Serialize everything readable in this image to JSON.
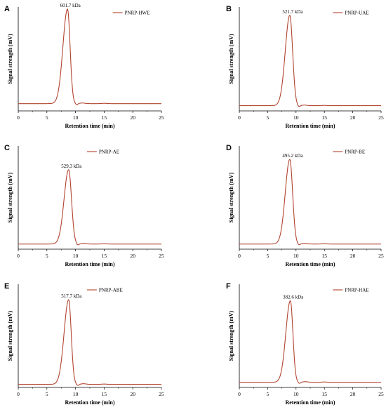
{
  "figure": {
    "background": "#ffffff",
    "line_color": "#b2432f"
  },
  "chart_data": [
    {
      "type": "line",
      "letter": "A",
      "legend": "PNRP-HWE",
      "xlabel": "Retention time (min)",
      "ylabel": "Signal strength (mV)",
      "xlim": [
        0,
        25
      ],
      "xticks": [
        0,
        5,
        10,
        15,
        20,
        25
      ],
      "peak": {
        "x": 8.6,
        "label": "601.7 kDa",
        "height": 0.98,
        "rise": 0.8,
        "fall": 0.45
      },
      "baseline": 0.07,
      "grid": false,
      "legend_position": "top-right"
    },
    {
      "type": "line",
      "letter": "B",
      "legend": "PNRP-UAE",
      "xlabel": "Retention time (min)",
      "ylabel": "Signal strength (mV)",
      "xlim": [
        0,
        25
      ],
      "xticks": [
        0,
        5,
        10,
        15,
        20,
        25
      ],
      "peak": {
        "x": 8.9,
        "label": "521.7 kDa",
        "height": 0.92,
        "rise": 0.8,
        "fall": 0.5
      },
      "baseline": 0.05,
      "grid": false,
      "legend_position": "top-right"
    },
    {
      "type": "line",
      "letter": "C",
      "legend": "PNRP-AE",
      "xlabel": "Retention time (min)",
      "ylabel": "Signal strength (mV)",
      "xlim": [
        0,
        25
      ],
      "xticks": [
        0,
        5,
        10,
        15,
        20,
        25
      ],
      "peak": {
        "x": 8.8,
        "label": "529.3 kDa",
        "height": 0.77,
        "rise": 0.8,
        "fall": 0.5
      },
      "baseline": 0.05,
      "grid": false,
      "legend_position": "top-left"
    },
    {
      "type": "line",
      "letter": "D",
      "legend": "PNRP-BE",
      "xlabel": "Retention time (min)",
      "ylabel": "Signal strength (mV)",
      "xlim": [
        0,
        25
      ],
      "xticks": [
        0,
        5,
        10,
        15,
        20,
        25
      ],
      "peak": {
        "x": 8.9,
        "label": "495.2 kDa",
        "height": 0.87,
        "rise": 0.8,
        "fall": 0.5
      },
      "baseline": 0.05,
      "grid": false,
      "legend_position": "top-right"
    },
    {
      "type": "line",
      "letter": "E",
      "legend": "PNRP-ABE",
      "xlabel": "Retention time (min)",
      "ylabel": "Signal strength (mV)",
      "xlim": [
        0,
        25
      ],
      "xticks": [
        0,
        5,
        10,
        15,
        20,
        25
      ],
      "peak": {
        "x": 8.8,
        "label": "517.7 kDa",
        "height": 0.85,
        "rise": 0.8,
        "fall": 0.45
      },
      "baseline": 0.03,
      "grid": false,
      "legend_position": "top-left"
    },
    {
      "type": "line",
      "letter": "F",
      "legend": "PNRP-HAE",
      "xlabel": "Retention time (min)",
      "ylabel": "Signal strength (mV)",
      "xlim": [
        0,
        25
      ],
      "xticks": [
        0,
        5,
        10,
        15,
        20,
        25
      ],
      "peak": {
        "x": 9.0,
        "label": "382.6 kDa",
        "height": 0.84,
        "rise": 0.8,
        "fall": 0.45
      },
      "baseline": 0.05,
      "grid": false,
      "legend_position": "top-right"
    }
  ]
}
